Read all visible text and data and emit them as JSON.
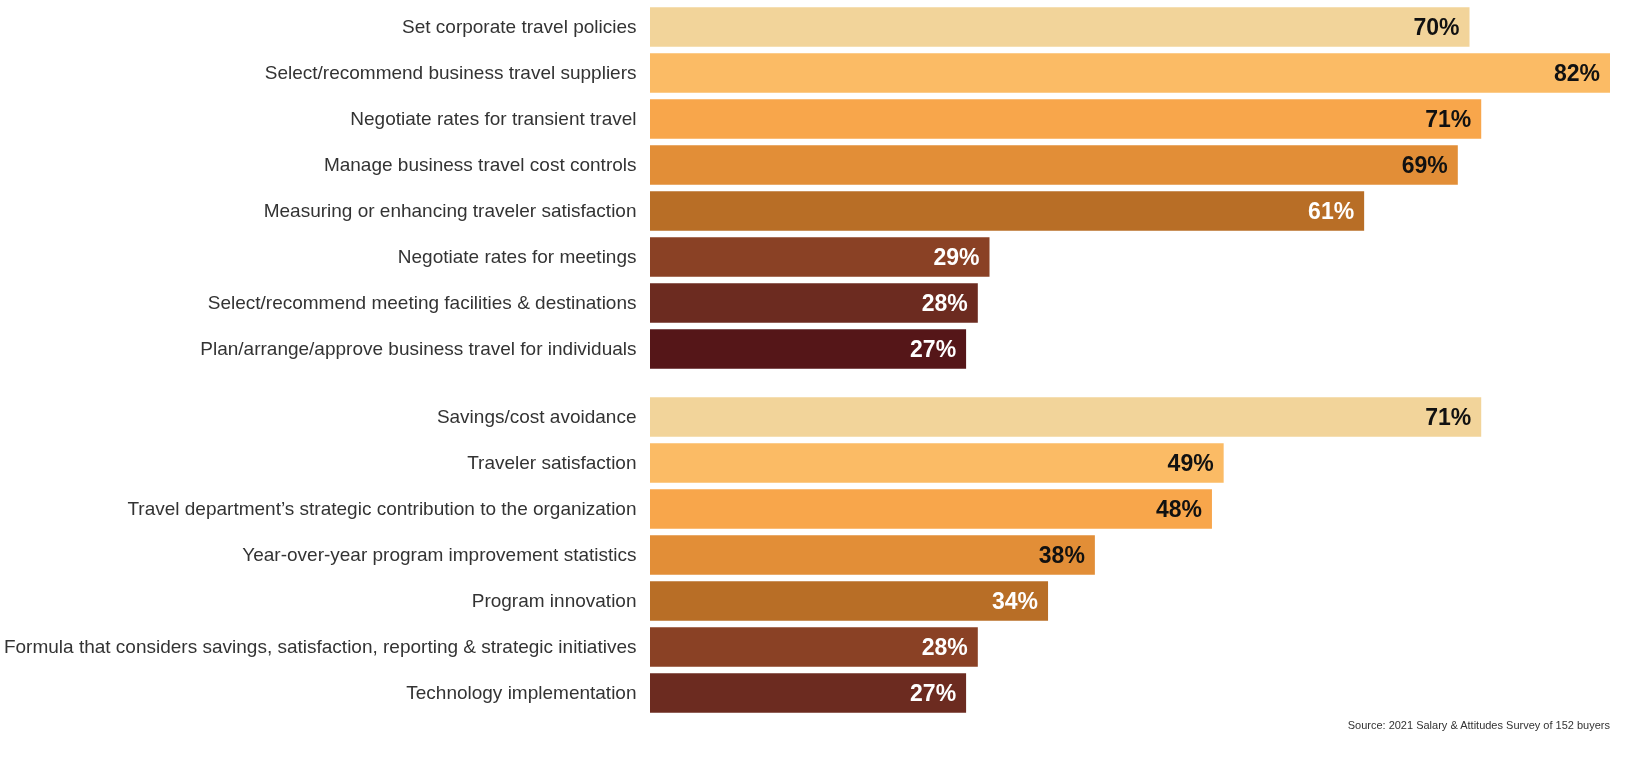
{
  "chart_data": [
    {
      "type": "bar",
      "orientation": "horizontal",
      "categories": [
        "Set corporate travel policies",
        "Select/recommend business travel suppliers",
        "Negotiate rates for transient travel",
        "Manage business travel cost controls",
        "Measuring or enhancing traveler satisfaction",
        "Negotiate rates for meetings",
        "Select/recommend meeting facilities & destinations",
        "Plan/arrange/approve business travel for individuals"
      ],
      "values": [
        70,
        82,
        71,
        69,
        61,
        29,
        28,
        27
      ],
      "value_labels": [
        "70%",
        "82%",
        "71%",
        "69%",
        "61%",
        "29%",
        "28%",
        "27%"
      ],
      "colors": [
        "#f2d49a",
        "#fbbb65",
        "#f8a64b",
        "#e28e37",
        "#b86e26",
        "#8a4125",
        "#6c2b20",
        "#551618"
      ]
    },
    {
      "type": "bar",
      "orientation": "horizontal",
      "categories": [
        "Savings/cost avoidance",
        "Traveler satisfaction",
        "Travel department’s strategic contribution to the organization",
        "Year-over-year program improvement statistics",
        "Program innovation",
        "Formula that considers savings, satisfaction, reporting & strategic initiatives",
        "Technology implementation"
      ],
      "values": [
        71,
        49,
        48,
        38,
        34,
        28,
        27
      ],
      "value_labels": [
        "71%",
        "49%",
        "48%",
        "38%",
        "34%",
        "28%",
        "27%"
      ],
      "colors": [
        "#f2d49a",
        "#fbbb65",
        "#f8a64b",
        "#e28e37",
        "#b86e26",
        "#8a4125",
        "#6c2b20"
      ],
      "annotations": [
        "Source: 2021 Salary & Attitudes Survey of 152 buyers"
      ]
    }
  ]
}
